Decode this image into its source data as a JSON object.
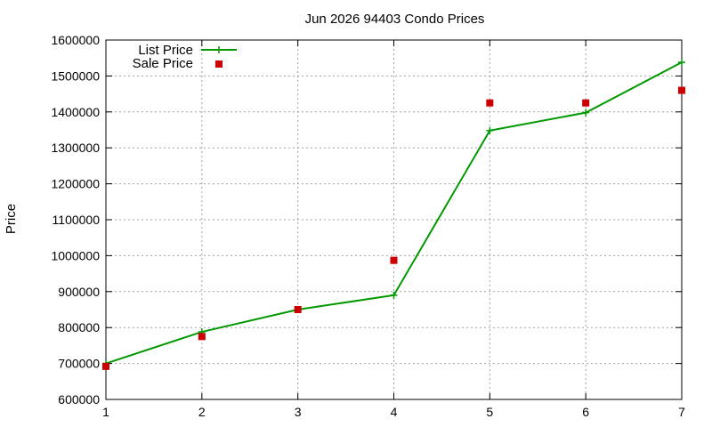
{
  "chart_data": {
    "type": "line",
    "title": "Jun 2026 94403 Condo Prices",
    "xlabel": "",
    "ylabel": "Price",
    "x": [
      1,
      2,
      3,
      4,
      5,
      6,
      7
    ],
    "xlim": [
      1,
      7
    ],
    "ylim": [
      600000,
      1600000
    ],
    "x_ticks": [
      "1",
      "2",
      "3",
      "4",
      "5",
      "6",
      "7"
    ],
    "y_ticks": [
      "600000",
      "700000",
      "800000",
      "900000",
      "1000000",
      "1100000",
      "1200000",
      "1300000",
      "1400000",
      "1500000",
      "1600000"
    ],
    "grid": true,
    "legend_position": "top-left",
    "series": [
      {
        "name": "List Price",
        "style": "line-with-plus-markers",
        "color": "#009900",
        "values": [
          700000,
          788000,
          850000,
          890000,
          1348000,
          1398000,
          1538000
        ]
      },
      {
        "name": "Sale Price",
        "style": "square-markers",
        "color": "#cc0000",
        "values": [
          692000,
          775000,
          850000,
          987000,
          1425000,
          1425000,
          1460000
        ]
      }
    ]
  }
}
